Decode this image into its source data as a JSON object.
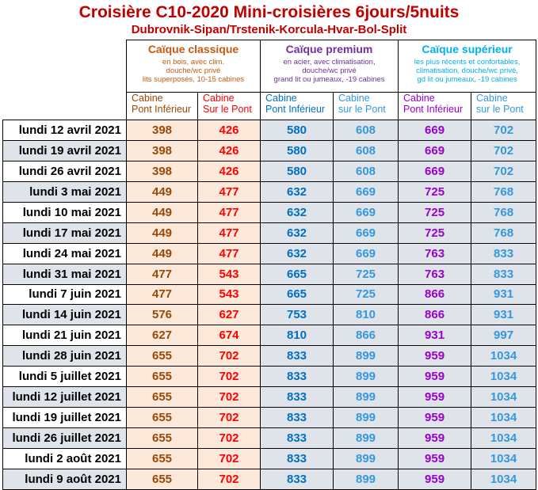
{
  "title": "Croisière C10-2020 Mini-croisières 6jours/5nuits",
  "subtitle": "Dubrovnik-Sipan/Trstenik-Korcula-Hvar-Bol-Split",
  "categories": [
    {
      "name": "Caïque classique",
      "desc": [
        "en bois, avec clim.",
        "douche/wc privé",
        "lits superposés, 10-15 cabines"
      ]
    },
    {
      "name": "Caïque premium",
      "desc": [
        "en acier, avec climatisation,",
        "douche/wc privé",
        "grand lit ou jumeaux, -19 cabines"
      ]
    },
    {
      "name": "Caïque supérieur",
      "desc": [
        "les plus récents et confortables,",
        "climatisation, douche/wc privé,",
        "gd lit ou jumeaux, -19 cabines"
      ]
    }
  ],
  "cabins": [
    [
      "Cabine",
      "Pont Inférieur"
    ],
    [
      "Cabine",
      "Sur le Pont"
    ],
    [
      "Cabine",
      "Pont Inférieur"
    ],
    [
      "Cabine",
      "sur le Pont"
    ],
    [
      "Cabine",
      "Pont Inférieur"
    ],
    [
      "Cabine",
      "sur le Pont"
    ]
  ],
  "rows": [
    {
      "date": "lundi 12 avril 2021",
      "prices": [
        "398",
        "426",
        "580",
        "608",
        "669",
        "702"
      ]
    },
    {
      "date": "lundi 19 avril 2021",
      "prices": [
        "398",
        "426",
        "580",
        "608",
        "669",
        "702"
      ]
    },
    {
      "date": "lundi 26 avril 2021",
      "prices": [
        "398",
        "426",
        "580",
        "608",
        "669",
        "702"
      ]
    },
    {
      "date": "lundi 3 mai 2021",
      "prices": [
        "449",
        "477",
        "632",
        "669",
        "725",
        "768"
      ]
    },
    {
      "date": "lundi 10 mai 2021",
      "prices": [
        "449",
        "477",
        "632",
        "669",
        "725",
        "768"
      ]
    },
    {
      "date": "lundi 17 mai 2021",
      "prices": [
        "449",
        "477",
        "632",
        "669",
        "725",
        "768"
      ]
    },
    {
      "date": "lundi 24 mai 2021",
      "prices": [
        "449",
        "477",
        "632",
        "669",
        "763",
        "833"
      ]
    },
    {
      "date": "lundi 31 mai 2021",
      "prices": [
        "477",
        "543",
        "665",
        "725",
        "763",
        "833"
      ]
    },
    {
      "date": "lundi 7 juin 2021",
      "prices": [
        "477",
        "543",
        "665",
        "725",
        "866",
        "931"
      ]
    },
    {
      "date": "lundi 14 juin 2021",
      "prices": [
        "576",
        "627",
        "753",
        "810",
        "866",
        "931"
      ]
    },
    {
      "date": "lundi 21 juin 2021",
      "prices": [
        "627",
        "674",
        "810",
        "866",
        "931",
        "997"
      ]
    },
    {
      "date": "lundi 28 juin 2021",
      "prices": [
        "655",
        "702",
        "833",
        "899",
        "959",
        "1034"
      ]
    },
    {
      "date": "lundi 5 juillet 2021",
      "prices": [
        "655",
        "702",
        "833",
        "899",
        "959",
        "1034"
      ]
    },
    {
      "date": "lundi 12 juillet 2021",
      "prices": [
        "655",
        "702",
        "833",
        "899",
        "959",
        "1034"
      ]
    },
    {
      "date": "lundi 19 juillet 2021",
      "prices": [
        "655",
        "702",
        "833",
        "899",
        "959",
        "1034"
      ]
    },
    {
      "date": "lundi 26 juillet 2021",
      "prices": [
        "655",
        "702",
        "833",
        "899",
        "959",
        "1034"
      ]
    },
    {
      "date": "lundi 2 août 2021",
      "prices": [
        "655",
        "702",
        "833",
        "899",
        "959",
        "1034"
      ]
    },
    {
      "date": "lundi 9 août 2021",
      "prices": [
        "655",
        "702",
        "833",
        "899",
        "959",
        "1034"
      ]
    }
  ]
}
